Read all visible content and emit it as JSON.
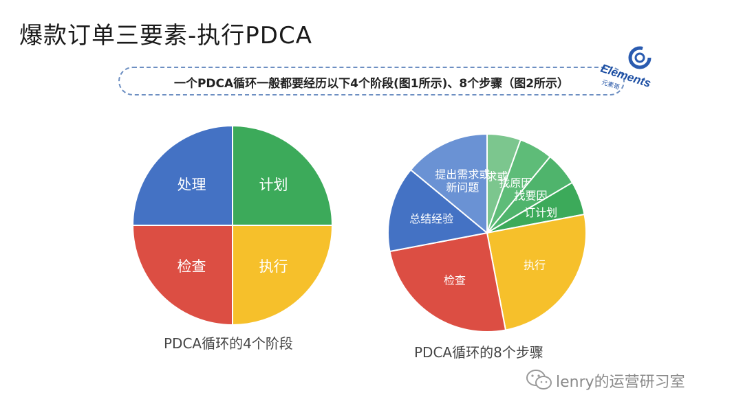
{
  "header": {
    "title": "爆款订单三要素-执行PDCA"
  },
  "banner": {
    "text": "一个PDCA循环一般都要经历以下4个阶段(图1所示)、8个步骤（图2所示）"
  },
  "logo": {
    "text": "Elements",
    "subtext": "元素哥",
    "icon": "elements-logo-icon"
  },
  "watermark": {
    "text": "lenry的运营研习室",
    "icon": "wechat-icon"
  },
  "colors": {
    "blue": "#4472C4",
    "green": "#3CAA5A",
    "yellow": "#F6C02B",
    "red": "#DC4E43",
    "lightblue": "#6A92D4",
    "lightgreen1": "#66C185",
    "lightgreen2": "#50B770"
  },
  "chart_data": [
    {
      "type": "pie",
      "title": "PDCA循环的4个阶段",
      "slices": [
        {
          "label": "计划",
          "value": 25,
          "color": "#3CAA5A"
        },
        {
          "label": "执行",
          "value": 25,
          "color": "#F6C02B"
        },
        {
          "label": "检查",
          "value": 25,
          "color": "#DC4E43"
        },
        {
          "label": "处理",
          "value": 25,
          "color": "#4472C4"
        }
      ]
    },
    {
      "type": "pie",
      "title": "PDCA循环的8个步骤",
      "slices": [
        {
          "label": "找需求或问题",
          "value": 5.5,
          "color": "#7CC68E"
        },
        {
          "label": "找原因",
          "value": 5.5,
          "color": "#5EBC78"
        },
        {
          "label": "找要因",
          "value": 5.5,
          "color": "#4FB46C"
        },
        {
          "label": "订计划",
          "value": 5.5,
          "color": "#3CAA5A"
        },
        {
          "label": "执行",
          "value": 25,
          "color": "#F6C02B"
        },
        {
          "label": "检查",
          "value": 25,
          "color": "#DC4E43"
        },
        {
          "label": "总结经验",
          "value": 14,
          "color": "#4472C4"
        },
        {
          "label": "提出需求或\n新问题",
          "value": 14,
          "color": "#6A92D4"
        }
      ]
    }
  ]
}
